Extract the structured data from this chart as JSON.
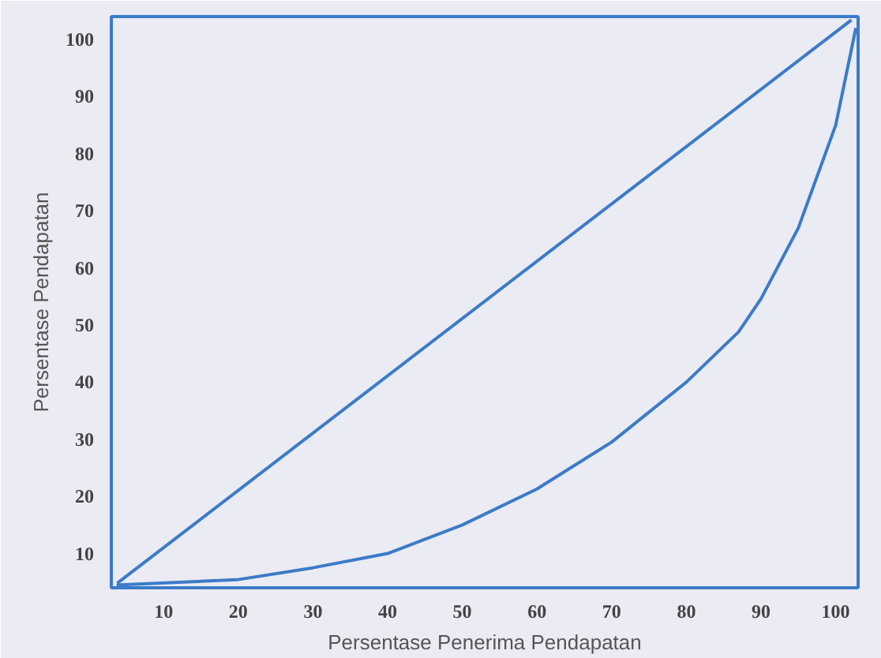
{
  "chart_data": {
    "type": "line",
    "xlabel": "Persentase Penerima Pendapatan",
    "ylabel": "Persentase Pendapatan",
    "xlim": [
      3,
      103
    ],
    "ylim": [
      4,
      104
    ],
    "xticks": [
      10,
      20,
      30,
      40,
      50,
      60,
      70,
      80,
      90,
      100
    ],
    "yticks": [
      10,
      20,
      30,
      40,
      50,
      60,
      70,
      80,
      90,
      100
    ],
    "grid": false,
    "series": [
      {
        "color": "#3b7bc8",
        "x": [
          3.8,
          102.1
        ],
        "values": [
          4.8,
          103.4
        ]
      },
      {
        "color": "#3b7bc8",
        "x": [
          3.7,
          19.8,
          30,
          40,
          50,
          60,
          70,
          80,
          87,
          90,
          95,
          100,
          102.7
        ],
        "values": [
          4.5,
          5.4,
          7.5,
          10,
          15,
          21.3,
          29.5,
          40,
          48.8,
          54.6,
          67,
          85,
          102
        ]
      }
    ]
  }
}
